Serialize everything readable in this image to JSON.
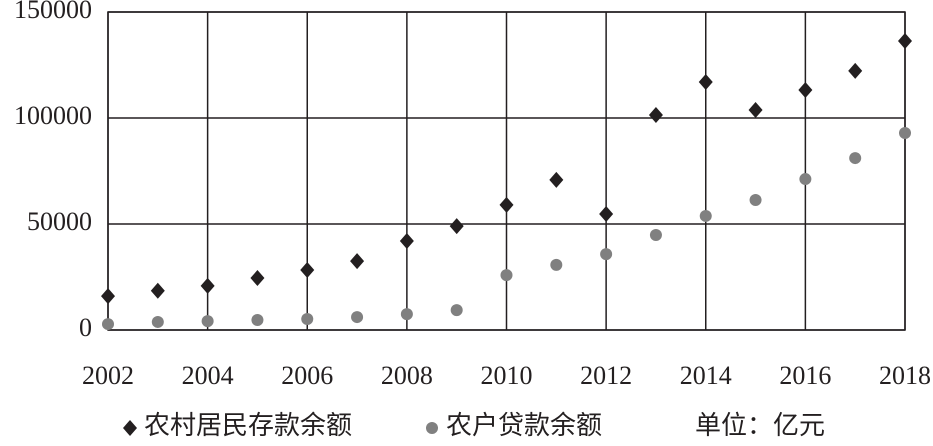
{
  "chart_data": {
    "type": "scatter",
    "x": [
      2002,
      2003,
      2004,
      2005,
      2006,
      2007,
      2008,
      2009,
      2010,
      2011,
      2012,
      2013,
      2014,
      2015,
      2016,
      2017,
      2018
    ],
    "series": [
      {
        "name": "农村居民存款余额",
        "color": "#231f20",
        "marker": "diamond",
        "values": [
          16000,
          18500,
          20800,
          24500,
          28300,
          32500,
          42000,
          49000,
          59000,
          70800,
          54700,
          101400,
          117000,
          103800,
          113200,
          122200,
          136300
        ]
      },
      {
        "name": "农户贷款余额",
        "color": "#808080",
        "marker": "circle",
        "values": [
          2800,
          3800,
          4200,
          4700,
          5200,
          6100,
          7500,
          9400,
          25900,
          30700,
          35800,
          44800,
          53800,
          61300,
          71200,
          81100,
          92900
        ]
      }
    ],
    "annotation": "单位：亿元",
    "xlim": [
      2002,
      2018
    ],
    "xticks": [
      2002,
      2004,
      2006,
      2008,
      2010,
      2012,
      2014,
      2016,
      2018
    ],
    "ylim": [
      0,
      150000
    ],
    "yticks": [
      0,
      50000,
      100000,
      150000
    ],
    "grid": true
  }
}
